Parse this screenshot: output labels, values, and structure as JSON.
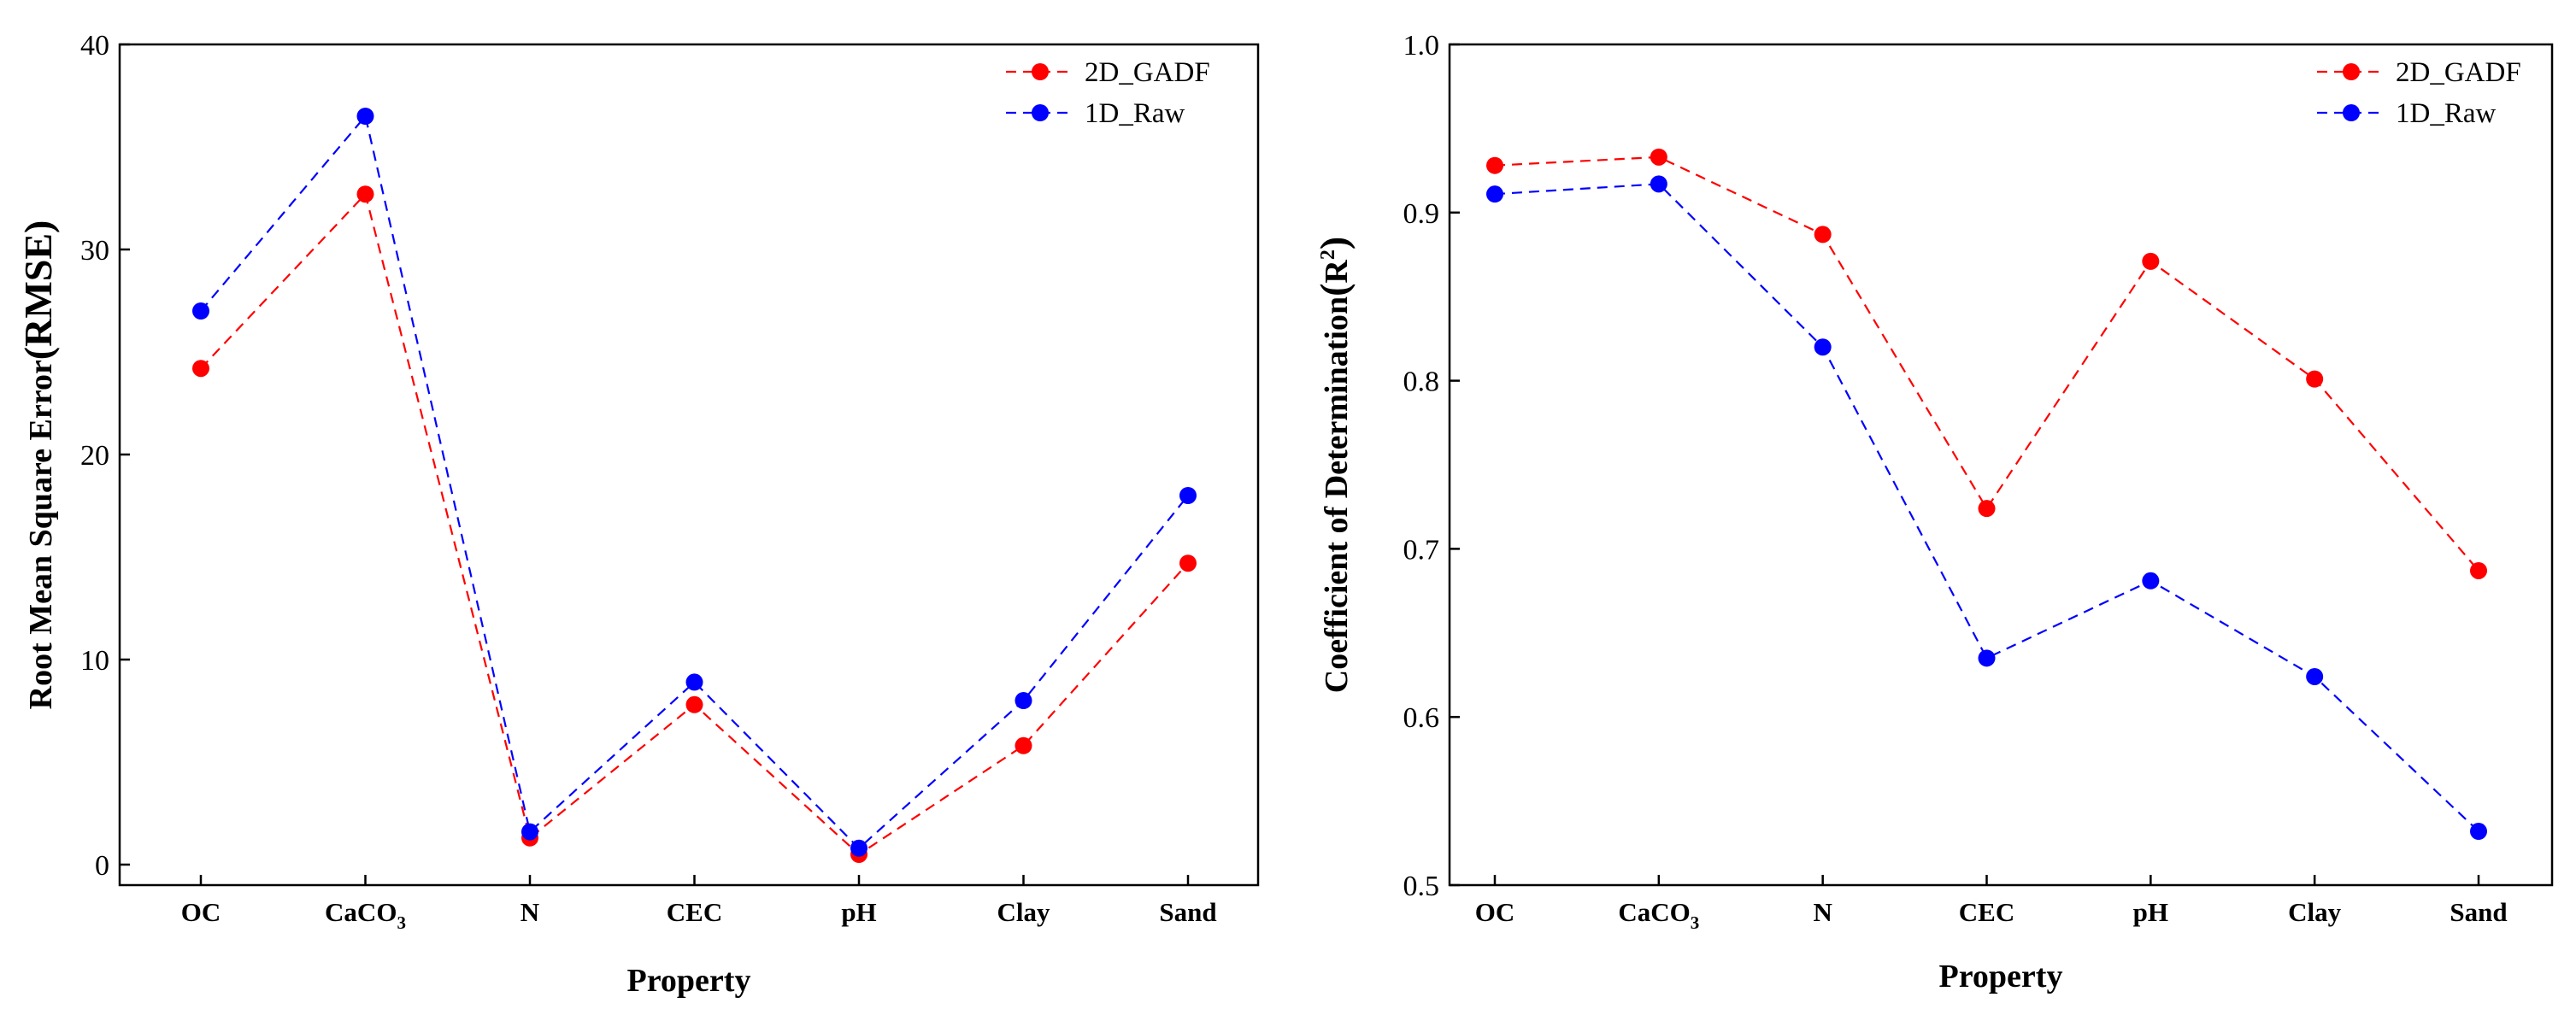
{
  "chart_data": [
    {
      "type": "line",
      "categories": [
        "OC",
        "CaCO3",
        "N",
        "CEC",
        "pH",
        "Clay",
        "Sand"
      ],
      "category_display": [
        {
          "base": "OC",
          "sub": ""
        },
        {
          "base": "CaCO",
          "sub": "3"
        },
        {
          "base": "N",
          "sub": ""
        },
        {
          "base": "CEC",
          "sub": ""
        },
        {
          "base": "pH",
          "sub": ""
        },
        {
          "base": "Clay",
          "sub": ""
        },
        {
          "base": "Sand",
          "sub": ""
        }
      ],
      "series": [
        {
          "name": "2D_GADF",
          "color": "#ff0000",
          "values": [
            24.2,
            32.7,
            1.3,
            7.8,
            0.5,
            5.8,
            14.7
          ]
        },
        {
          "name": "1D_Raw",
          "color": "#0000ff",
          "values": [
            27.0,
            36.5,
            1.6,
            8.9,
            0.8,
            8.0,
            18.0
          ]
        }
      ],
      "title": "",
      "xlabel": "Property",
      "ylabel": "Root Mean Square Error(RMSE)",
      "ylabel_parts": {
        "main": "Root Mean Square Error",
        "paren": "(RMSE)"
      },
      "ylim": [
        -1,
        40
      ],
      "yticks": [
        0,
        10,
        20,
        30,
        40
      ],
      "ytick_labels": [
        "0",
        "10",
        "20",
        "30",
        "40"
      ],
      "grid": false,
      "legend_position": "top-right"
    },
    {
      "type": "line",
      "categories": [
        "OC",
        "CaCO3",
        "N",
        "CEC",
        "pH",
        "Clay",
        "Sand"
      ],
      "category_display": [
        {
          "base": "OC",
          "sub": ""
        },
        {
          "base": "CaCO",
          "sub": "3"
        },
        {
          "base": "N",
          "sub": ""
        },
        {
          "base": "CEC",
          "sub": ""
        },
        {
          "base": "pH",
          "sub": ""
        },
        {
          "base": "Clay",
          "sub": ""
        },
        {
          "base": "Sand",
          "sub": ""
        }
      ],
      "series": [
        {
          "name": "2D_GADF",
          "color": "#ff0000",
          "values": [
            0.928,
            0.933,
            0.887,
            0.724,
            0.871,
            0.801,
            0.687
          ]
        },
        {
          "name": "1D_Raw",
          "color": "#0000ff",
          "values": [
            0.911,
            0.917,
            0.82,
            0.635,
            0.681,
            0.624,
            0.532
          ]
        }
      ],
      "title": "",
      "xlabel": "Property",
      "ylabel": "Coefficient of Determination(R2)",
      "ylabel_parts": {
        "main": "Coefficient of Determination",
        "open": "(",
        "base": "R",
        "sup": "2",
        "close": ")"
      },
      "ylim": [
        0.5,
        1.0
      ],
      "yticks": [
        0.5,
        0.6,
        0.7,
        0.8,
        0.9,
        1.0
      ],
      "ytick_labels": [
        "0.5",
        "0.6",
        "0.7",
        "0.8",
        "0.9",
        "1.0"
      ],
      "grid": false,
      "legend_position": "top-right"
    }
  ]
}
